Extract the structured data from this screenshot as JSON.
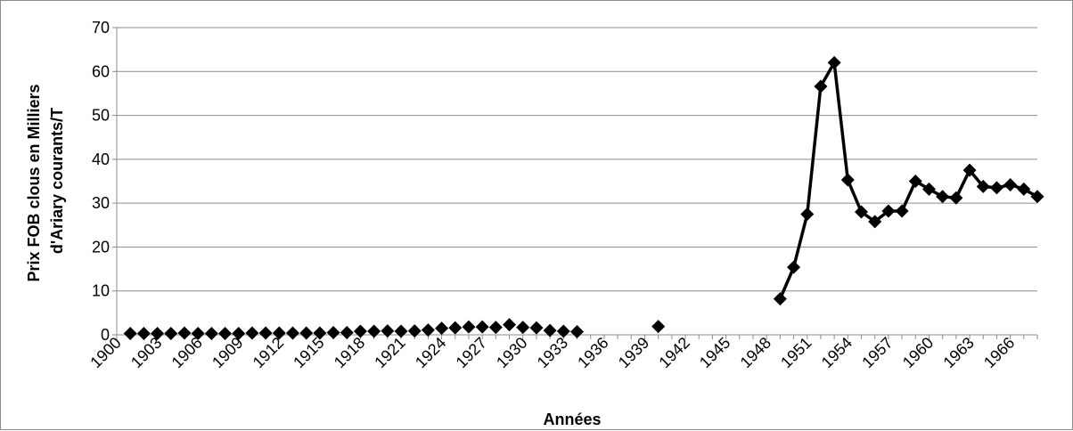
{
  "chart_data": {
    "type": "line",
    "title": "",
    "xlabel": "Années",
    "ylabel_lines": [
      "Prix FOB clous en Milliers",
      "d'Ariary courants/T"
    ],
    "xlim": [
      1900,
      1968
    ],
    "ylim": [
      0,
      70
    ],
    "y_ticks": [
      0,
      10,
      20,
      30,
      40,
      50,
      60,
      70
    ],
    "x_tick_labels": [
      "1900",
      "1903",
      "1906",
      "1909",
      "1912",
      "1915",
      "1918",
      "1921",
      "1924",
      "1927",
      "1930",
      "1933",
      "1936",
      "1939",
      "1942",
      "1945",
      "1948",
      "1951",
      "1954",
      "1957",
      "1960",
      "1963",
      "1966"
    ],
    "grid": "horizontal",
    "legend": "none",
    "line_color": "#000000",
    "marker": "diamond",
    "series": [
      {
        "x": [
          1901,
          1902,
          1903,
          1904,
          1905,
          1906,
          1907,
          1908,
          1909,
          1910,
          1911,
          1912,
          1913,
          1914,
          1915,
          1916,
          1917,
          1918,
          1919,
          1920,
          1921,
          1922,
          1923,
          1924,
          1925,
          1926,
          1927,
          1928,
          1929,
          1930,
          1931,
          1932,
          1933,
          1934,
          1940,
          1949,
          1950,
          1951,
          1952,
          1953,
          1954,
          1955,
          1956,
          1957,
          1958,
          1959,
          1960,
          1961,
          1962,
          1963,
          1964,
          1965,
          1966,
          1967,
          1968
        ],
        "y": [
          0.3,
          0.3,
          0.3,
          0.3,
          0.4,
          0.3,
          0.3,
          0.3,
          0.3,
          0.4,
          0.4,
          0.4,
          0.4,
          0.4,
          0.4,
          0.5,
          0.5,
          0.8,
          0.8,
          0.9,
          0.8,
          0.9,
          1.1,
          1.5,
          1.6,
          1.8,
          1.8,
          1.7,
          2.3,
          1.7,
          1.6,
          1.0,
          0.8,
          0.7,
          1.9,
          8.2,
          15.4,
          27.5,
          56.6,
          62.0,
          35.3,
          28.0,
          25.8,
          28.2,
          28.2,
          35.0,
          33.2,
          31.5,
          31.2,
          37.5,
          33.8,
          33.5,
          34.2,
          33.2,
          31.5
        ],
        "connected_segments": [
          [
            1949,
            1968
          ]
        ]
      }
    ]
  }
}
